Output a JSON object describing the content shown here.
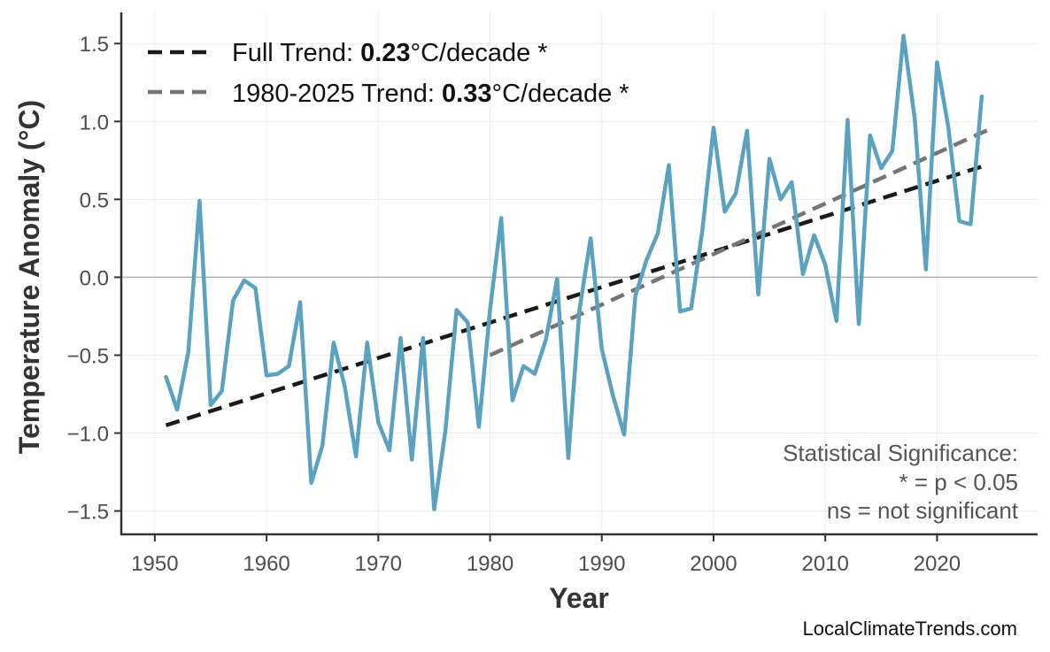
{
  "chart_data": {
    "type": "line",
    "xlabel": "Year",
    "ylabel": "Temperature Anomaly (°C)",
    "xlim": [
      1947,
      2029
    ],
    "ylim": [
      -1.65,
      1.7
    ],
    "x_ticks": [
      1950,
      1960,
      1970,
      1980,
      1990,
      2000,
      2010,
      2020
    ],
    "y_ticks": [
      -1.5,
      -1.0,
      -0.5,
      0.0,
      0.5,
      1.0,
      1.5
    ],
    "y_tick_labels": [
      "−1.5",
      "−1.0",
      "−0.5",
      "0.0",
      "0.5",
      "1.0",
      "1.5"
    ],
    "grid": true,
    "zero_line": true,
    "legend_position": "top-left",
    "colors": {
      "series": "#5ba2c1",
      "full_trend": "#1a1a1a",
      "recent_trend": "#757575",
      "zero_line": "#b3b3b3",
      "grid": "#ececec",
      "axis": "#333333"
    },
    "series": [
      {
        "x": [
          1951,
          1952,
          1953,
          1954,
          1955,
          1956,
          1957,
          1958,
          1959,
          1960,
          1961,
          1962,
          1963,
          1964,
          1965,
          1966,
          1967,
          1968,
          1969,
          1970,
          1971,
          1972,
          1973,
          1974,
          1975,
          1976,
          1977,
          1978,
          1979,
          1980,
          1981,
          1982,
          1983,
          1984,
          1985,
          1986,
          1987,
          1988,
          1989,
          1990,
          1991,
          1992,
          1993,
          1994,
          1995,
          1996,
          1997,
          1998,
          1999,
          2000,
          2001,
          2002,
          2003,
          2004,
          2005,
          2006,
          2007,
          2008,
          2009,
          2010,
          2011,
          2012,
          2013,
          2014,
          2015,
          2016,
          2017,
          2018,
          2019,
          2020,
          2021,
          2022,
          2023,
          2024
        ],
        "values": [
          -0.64,
          -0.85,
          -0.48,
          0.49,
          -0.82,
          -0.73,
          -0.15,
          -0.02,
          -0.07,
          -0.63,
          -0.62,
          -0.57,
          -0.16,
          -1.32,
          -1.08,
          -0.42,
          -0.7,
          -1.15,
          -0.42,
          -0.93,
          -1.11,
          -0.39,
          -1.17,
          -0.39,
          -1.49,
          -0.99,
          -0.21,
          -0.29,
          -0.96,
          -0.21,
          0.38,
          -0.79,
          -0.57,
          -0.62,
          -0.4,
          -0.01,
          -1.16,
          -0.21,
          0.25,
          -0.46,
          -0.76,
          -1.01,
          -0.12,
          0.11,
          0.28,
          0.72,
          -0.22,
          -0.2,
          0.3,
          0.96,
          0.42,
          0.54,
          0.94,
          -0.11,
          0.76,
          0.5,
          0.61,
          0.02,
          0.27,
          0.08,
          -0.28,
          1.01,
          -0.3,
          0.91,
          0.7,
          0.81,
          1.55,
          1.02,
          0.05,
          1.38,
          0.97,
          0.36,
          0.34,
          1.16
        ]
      }
    ],
    "trends": [
      {
        "label_prefix": "Full Trend: ",
        "value": "0.23",
        "label_suffix": "°C/decade *",
        "x": [
          1951,
          2024
        ],
        "y": [
          -0.95,
          0.71
        ]
      },
      {
        "label_prefix": "1980-2025 Trend: ",
        "value": "0.33",
        "label_suffix": "°C/decade *",
        "x": [
          1980,
          2025
        ],
        "y": [
          -0.5,
          0.96
        ]
      }
    ],
    "annotation": [
      "Statistical Significance:",
      "* = p < 0.05",
      "ns = not significant"
    ]
  },
  "credit": "LocalClimateTrends.com"
}
